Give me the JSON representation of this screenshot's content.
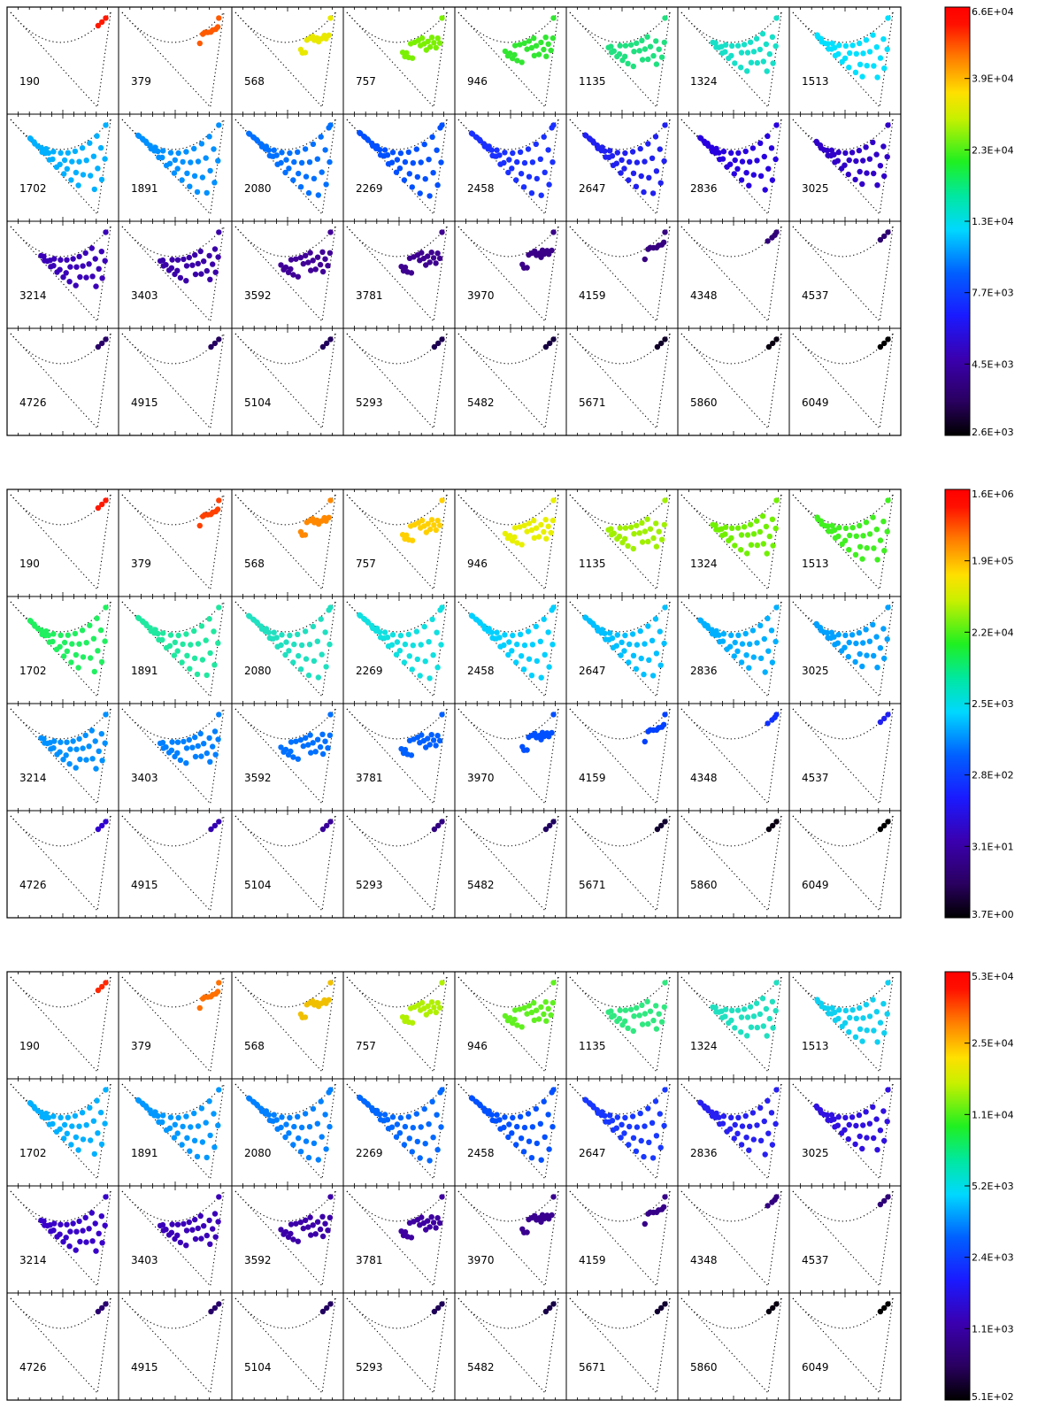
{
  "chart_data": [
    {
      "type": "scatter",
      "panel_labels": [
        "190",
        "379",
        "568",
        "757",
        "946",
        "1135",
        "1324",
        "1513",
        "1702",
        "1891",
        "2080",
        "2269",
        "2458",
        "2647",
        "2836",
        "3025",
        "3214",
        "3403",
        "3592",
        "3781",
        "3970",
        "4159",
        "4348",
        "4537",
        "4726",
        "4915",
        "5104",
        "5293",
        "5482",
        "5671",
        "5860",
        "6049"
      ],
      "colorbar": {
        "ticks": [
          "6.6E+04",
          "3.9E+04",
          "2.3E+04",
          "1.3E+04",
          "7.7E+03",
          "4.5E+03",
          "2.6E+03"
        ]
      },
      "panel_colors": [
        "#ff1800",
        "#ff5a00",
        "#e8e800",
        "#7af000",
        "#32e632",
        "#20e080",
        "#16e0c8",
        "#00e0ff",
        "#00b0ff",
        "#0090ff",
        "#0070ff",
        "#0050ff",
        "#1a30ff",
        "#2020f0",
        "#2800e0",
        "#3000c8",
        "#3a00b8",
        "#3a00a8",
        "#400098",
        "#3e0090",
        "#3a0088",
        "#360080",
        "#300078",
        "#2c0070",
        "#280068",
        "#240060",
        "#20005a",
        "#1c0050",
        "#160040",
        "#100028",
        "#080010",
        "#000000"
      ]
    },
    {
      "type": "scatter",
      "panel_labels": [
        "190",
        "379",
        "568",
        "757",
        "946",
        "1135",
        "1324",
        "1513",
        "1702",
        "1891",
        "2080",
        "2269",
        "2458",
        "2647",
        "2836",
        "3025",
        "3214",
        "3403",
        "3592",
        "3781",
        "3970",
        "4159",
        "4348",
        "4537",
        "4726",
        "4915",
        "5104",
        "5293",
        "5482",
        "5671",
        "5860",
        "6049"
      ],
      "colorbar": {
        "ticks": [
          "1.6E+06",
          "1.9E+05",
          "2.2E+04",
          "2.5E+03",
          "2.8E+02",
          "3.1E+01",
          "3.7E+00"
        ]
      },
      "panel_colors": [
        "#ff1800",
        "#ff4000",
        "#ff8800",
        "#ffd000",
        "#e8f000",
        "#a0f000",
        "#70f000",
        "#40f020",
        "#20f060",
        "#20e8a0",
        "#20e0c0",
        "#10e0e0",
        "#00d0ff",
        "#00c0ff",
        "#00b0ff",
        "#00a0ff",
        "#0090ff",
        "#0080ff",
        "#0070ff",
        "#0060ff",
        "#0050ff",
        "#0040ff",
        "#1030ff",
        "#2020f0",
        "#3000d0",
        "#3400b0",
        "#380098",
        "#300080",
        "#200060",
        "#100030",
        "#080010",
        "#000000"
      ]
    },
    {
      "type": "scatter",
      "panel_labels": [
        "190",
        "379",
        "568",
        "757",
        "946",
        "1135",
        "1324",
        "1513",
        "1702",
        "1891",
        "2080",
        "2269",
        "2458",
        "2647",
        "2836",
        "3025",
        "3214",
        "3403",
        "3592",
        "3781",
        "3970",
        "4159",
        "4348",
        "4537",
        "4726",
        "4915",
        "5104",
        "5293",
        "5482",
        "5671",
        "5860",
        "6049"
      ],
      "colorbar": {
        "ticks": [
          "5.3E+04",
          "2.5E+04",
          "1.1E+04",
          "5.2E+03",
          "2.4E+03",
          "1.1E+03",
          "5.1E+02"
        ]
      },
      "panel_colors": [
        "#ff2800",
        "#ff7000",
        "#f0c000",
        "#b0f000",
        "#60f020",
        "#30e880",
        "#20e0c0",
        "#10d0f0",
        "#00b0ff",
        "#0098ff",
        "#0080ff",
        "#0068ff",
        "#0050ff",
        "#1838ff",
        "#2820f0",
        "#3010e0",
        "#3800c8",
        "#3a00b8",
        "#3c00a8",
        "#3e00a0",
        "#3a0090",
        "#360088",
        "#320080",
        "#2e0078",
        "#2a0070",
        "#260068",
        "#220060",
        "#1e0058",
        "#180048",
        "#100030",
        "#080010",
        "#000000"
      ]
    }
  ]
}
